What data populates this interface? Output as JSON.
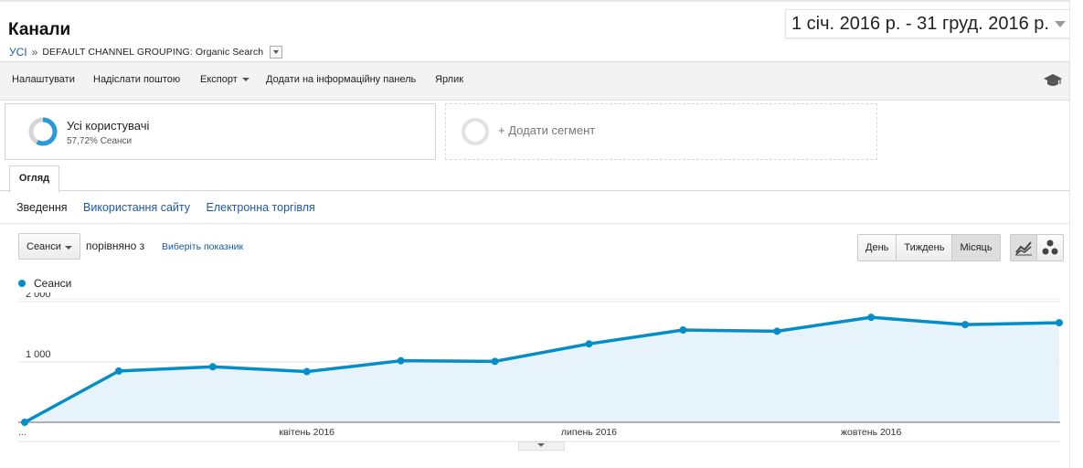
{
  "page": {
    "title": "Канали",
    "breadcrumb_all": "УСІ",
    "breadcrumb_sep": "»",
    "breadcrumb_group": "DEFAULT CHANNEL GROUPING: Organic Search",
    "date_range": "1 січ. 2016 р. - 31 груд. 2016 р."
  },
  "toolbar": {
    "customize": "Налаштувати",
    "email": "Надіслати поштою",
    "export": "Експорт",
    "add_dashboard": "Додати на інформаційну панель",
    "shortcut": "Ярлик"
  },
  "segments": {
    "active_name": "Усі користувачі",
    "active_sub": "57,72% Сеанси",
    "add_label": "+ Додати сегмент"
  },
  "tabs": {
    "overview": "Огляд",
    "subtabs": [
      "Зведення",
      "Використання сайту",
      "Електронна торгівля"
    ]
  },
  "controls": {
    "metric": "Сеанси",
    "compare": "порівняно з",
    "choose_metric": "Виберіть показник",
    "periods": [
      "День",
      "Тиждень",
      "Місяць"
    ],
    "active_period": "Місяць"
  },
  "colors": {
    "series": "#058dc7",
    "area": "#e6f3fa",
    "link": "#1a5aa6"
  },
  "chart_data": {
    "type": "area",
    "x": [
      "2016-01",
      "2016-02",
      "2016-03",
      "2016-04",
      "2016-05",
      "2016-06",
      "2016-07",
      "2016-08",
      "2016-09",
      "2016-10",
      "2016-11",
      "2016-12"
    ],
    "series": [
      {
        "name": "Сеанси",
        "values": [
          0,
          850,
          920,
          840,
          1020,
          1010,
          1300,
          1530,
          1510,
          1740,
          1620,
          1650
        ]
      }
    ],
    "ylim": [
      0,
      2000
    ],
    "yticks": [
      {
        "value": 1000,
        "label": "1 000"
      },
      {
        "value": 2000,
        "label": "2 000"
      }
    ],
    "xticks": [
      {
        "index": 0,
        "label": "..."
      },
      {
        "index": 3,
        "label": "квітень 2016"
      },
      {
        "index": 6,
        "label": "липень 2016"
      },
      {
        "index": 9,
        "label": "жовтень 2016"
      }
    ],
    "grid": true,
    "legend": "top-left"
  }
}
